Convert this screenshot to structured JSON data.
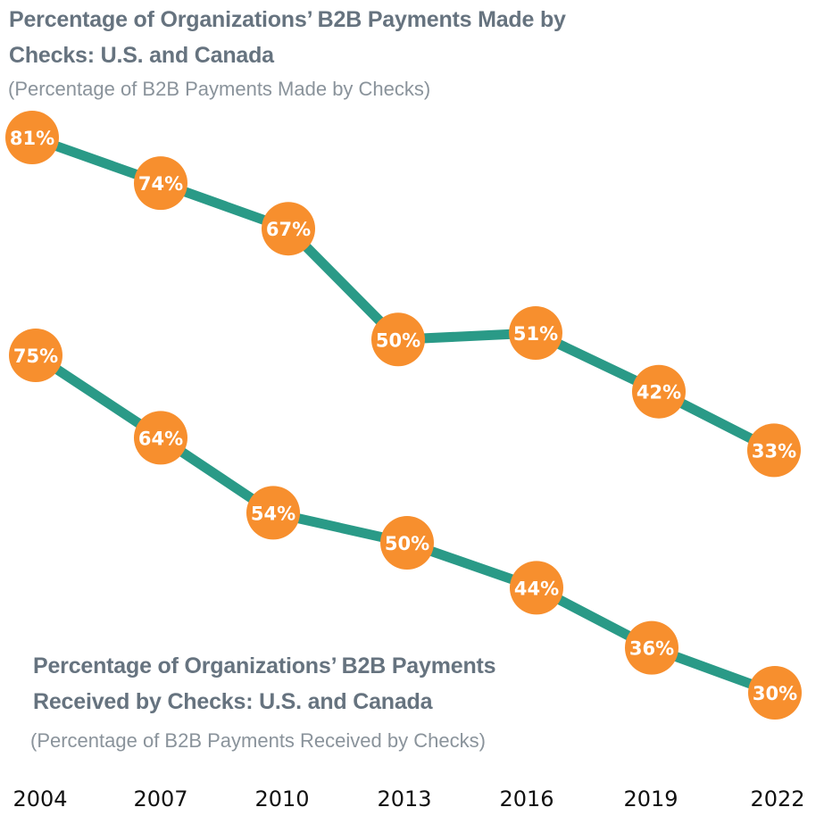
{
  "colors": {
    "line": "#2a9a87",
    "marker": "#f78f2e",
    "marker_text": "#ffffff",
    "title": "#66737f",
    "subtitle": "#8a939b",
    "axis_text": "#111111"
  },
  "chart_data": [
    {
      "type": "line",
      "title": "Percentage of Organizations’ B2B Payments Made by Checks: U.S. and Canada",
      "subtitle": "(Percentage of B2B Payments Made by Checks)",
      "xlabel": "",
      "ylabel": "",
      "x": [
        "2004",
        "2007",
        "2010",
        "2013",
        "2016",
        "2019",
        "2022"
      ],
      "series": [
        {
          "name": "Payments Made by Checks",
          "values": [
            81,
            74,
            67,
            50,
            51,
            42,
            33
          ],
          "labels": [
            "81%",
            "74%",
            "67%",
            "50%",
            "51%",
            "42%",
            "33%"
          ]
        }
      ],
      "grid": false,
      "legend": "none"
    },
    {
      "type": "line",
      "title": "Percentage of Organizations’ B2B Payments Received by Checks: U.S. and Canada",
      "subtitle": "(Percentage of B2B Payments Received by Checks)",
      "xlabel": "",
      "ylabel": "",
      "x": [
        "2004",
        "2007",
        "2010",
        "2013",
        "2016",
        "2019",
        "2022"
      ],
      "series": [
        {
          "name": "Payments Received by Checks",
          "values": [
            75,
            64,
            54,
            50,
            44,
            36,
            30
          ],
          "labels": [
            "75%",
            "64%",
            "54%",
            "50%",
            "44%",
            "36%",
            "30%"
          ]
        }
      ],
      "grid": false,
      "legend": "none"
    }
  ],
  "text": {
    "made_title": "Percentage of Organizations’ B2B Payments Made by Checks: U.S. and Canada",
    "made_subtitle": "(Percentage of B2B Payments Made by Checks)",
    "received_title": "Percentage of Organizations’ B2B Payments Received by Checks: U.S. and Canada",
    "received_subtitle": "(Percentage of B2B Payments Received by Checks)"
  }
}
